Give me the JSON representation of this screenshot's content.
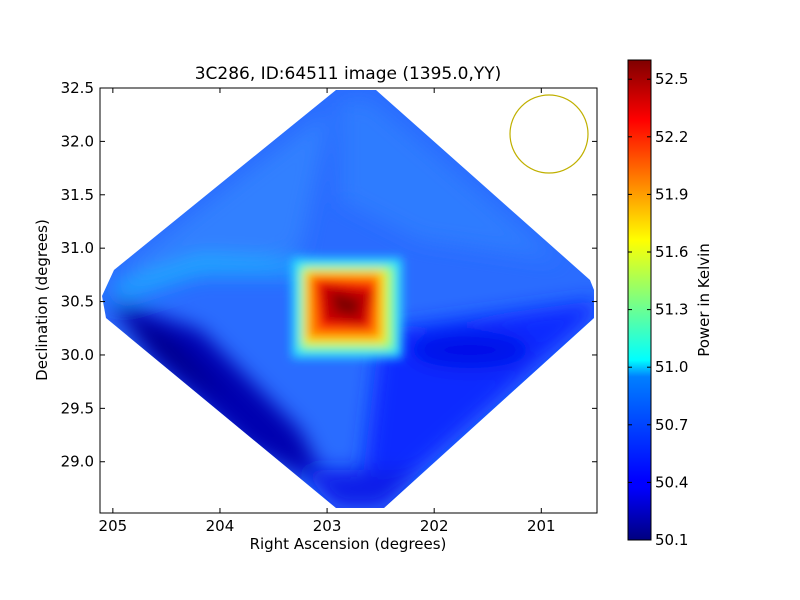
{
  "chart_data": {
    "type": "heatmap",
    "title": "3C286, ID:64511 image (1395.0,YY)",
    "xlabel": "Right Ascension (degrees)",
    "ylabel": "Declination (degrees)",
    "xlim": [
      205.12,
      200.48
    ],
    "ylim": [
      28.52,
      32.5
    ],
    "x_ticks": [
      205,
      204,
      203,
      202,
      201
    ],
    "x_tick_labels": [
      "205",
      "204",
      "203",
      "202",
      "201"
    ],
    "y_ticks": [
      29.0,
      29.5,
      30.0,
      30.5,
      31.0,
      31.5,
      32.0,
      32.5
    ],
    "y_tick_labels": [
      "29.0",
      "29.5",
      "30.0",
      "30.5",
      "31.0",
      "31.5",
      "32.0",
      "32.5"
    ],
    "colorbar": {
      "label": "Power in Kelvin",
      "colormap": "jet",
      "range": [
        50.1,
        52.6
      ],
      "ticks": [
        50.1,
        50.4,
        50.7,
        51.0,
        51.3,
        51.6,
        51.9,
        52.2,
        52.5
      ],
      "tick_labels": [
        "50.1",
        "50.4",
        "50.7",
        "51.0",
        "51.3",
        "51.6",
        "51.9",
        "52.2",
        "52.5"
      ]
    },
    "field": {
      "center_ra": 202.75,
      "center_dec": 30.52,
      "background_level": 50.55,
      "peak_level": 52.6,
      "peak_ra": 202.8,
      "peak_dec": 30.49,
      "minimum_level": 50.1,
      "minimum_ra": 204.8,
      "minimum_dec": 29.95
    },
    "beam_circle": {
      "ra": 200.92,
      "dec": 32.07,
      "radius_deg": 0.37,
      "color": "#c0b000"
    }
  }
}
